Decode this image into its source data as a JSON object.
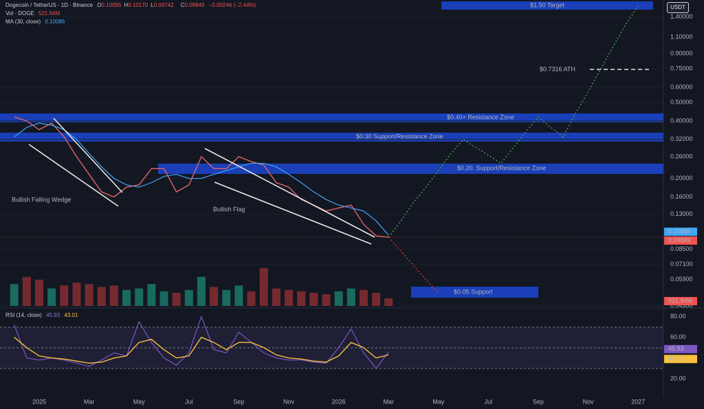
{
  "chart_data": [
    {
      "type": "line",
      "title": "Dogecoin / TetherUS · 1D · Binance",
      "unit": "USDT",
      "ohlc": [
        {
          "name": "O",
          "value": 0.10095,
          "label": "0.10095"
        },
        {
          "name": "H",
          "value": 0.1017,
          "label": "0.10170"
        },
        {
          "name": "L",
          "value": 0.09742,
          "label": "0.09742"
        }
      ],
      "close_name": "C",
      "change_label": "−0.00246 (−2.44%)",
      "log_scale": true,
      "grid": true,
      "color": "#e06666",
      "categories": [
        null,
        null,
        "2025",
        null,
        null,
        null,
        "Mar",
        null,
        null,
        null,
        "May",
        null,
        null,
        null,
        "Jul",
        null,
        null,
        null,
        "Sep",
        null,
        null,
        null,
        "Nov",
        null,
        null,
        null,
        "2026",
        null,
        null,
        null,
        "Mar",
        null,
        null,
        null,
        "May",
        null,
        null,
        null,
        "Jul",
        null,
        null,
        null,
        "Sep",
        null,
        null,
        null,
        "Nov",
        null,
        null,
        null,
        "2027",
        null,
        null
      ],
      "values": [
        0.42,
        0.4,
        0.36,
        0.39,
        0.33,
        0.26,
        0.21,
        0.17,
        0.16,
        0.18,
        0.185,
        0.225,
        0.225,
        0.17,
        0.185,
        0.26,
        0.225,
        0.225,
        0.26,
        0.245,
        0.235,
        0.19,
        0.18,
        0.155,
        0.145,
        0.135,
        0.14,
        0.145,
        0.115,
        0.1,
        0.09849,
        null,
        null,
        null,
        null,
        null,
        null,
        null,
        null,
        null,
        null,
        null,
        null,
        null,
        null,
        null,
        null,
        null,
        null,
        null,
        null,
        null,
        null
      ],
      "series": [
        {
          "name": "MA (30, close)",
          "color": "#42a5f5",
          "values": [
            0.33,
            0.37,
            0.39,
            0.38,
            0.36,
            0.32,
            0.27,
            0.23,
            0.2,
            0.185,
            0.18,
            0.19,
            0.205,
            0.21,
            0.2,
            0.2,
            0.21,
            0.22,
            0.23,
            0.24,
            0.24,
            0.23,
            0.21,
            0.19,
            0.17,
            0.155,
            0.145,
            0.14,
            0.135,
            0.12,
            0.10086,
            null,
            null,
            null,
            null,
            null,
            null,
            null,
            null,
            null,
            null,
            null,
            null,
            null,
            null,
            null,
            null,
            null,
            null,
            null,
            null,
            null,
            null
          ]
        }
      ],
      "projections": [
        {
          "color": "#4caf50",
          "values": [
            null,
            null,
            null,
            null,
            null,
            null,
            null,
            null,
            null,
            null,
            null,
            null,
            null,
            null,
            null,
            null,
            null,
            null,
            null,
            null,
            null,
            null,
            null,
            null,
            null,
            null,
            null,
            null,
            null,
            null,
            0.09849,
            0.12,
            0.15,
            0.18,
            0.22,
            0.27,
            0.32,
            0.29,
            0.265,
            0.24,
            0.29,
            0.35,
            0.42,
            0.37,
            0.33,
            0.44,
            0.57,
            0.75,
            0.98,
            1.28,
            1.6,
            null,
            null
          ]
        },
        {
          "color": "#e53935",
          "values": [
            null,
            null,
            null,
            null,
            null,
            null,
            null,
            null,
            null,
            null,
            null,
            null,
            null,
            null,
            null,
            null,
            null,
            null,
            null,
            null,
            null,
            null,
            null,
            null,
            null,
            null,
            null,
            null,
            null,
            null,
            0.09849,
            0.083,
            0.07,
            0.059,
            0.05,
            null,
            null,
            null,
            null,
            null,
            null,
            null,
            null,
            null,
            null,
            null,
            null,
            null,
            null,
            null,
            null,
            null,
            null
          ]
        }
      ],
      "ylim": [
        0.043,
        1.65
      ],
      "yticks": [
        {
          "value": 1.4,
          "label": "1.40000"
        },
        {
          "value": 1.1,
          "label": "1.10000"
        },
        {
          "value": 0.9,
          "label": "0.90000"
        },
        {
          "value": 0.75,
          "label": "0.75000"
        },
        {
          "value": 0.6,
          "label": "0.60000"
        },
        {
          "value": 0.5,
          "label": "0.50000"
        },
        {
          "value": 0.4,
          "label": "0.40000"
        },
        {
          "value": 0.32,
          "label": "0.32000"
        },
        {
          "value": 0.26,
          "label": "0.26000"
        },
        {
          "value": 0.2,
          "label": "0.20000"
        },
        {
          "value": 0.16,
          "label": "0.16000"
        },
        {
          "value": 0.13,
          "label": "0.13000"
        },
        {
          "value": 0.085,
          "label": "0.08500"
        },
        {
          "value": 0.071,
          "label": "0.07100"
        },
        {
          "value": 0.059,
          "label": "0.05900"
        },
        {
          "value": 0.043,
          "label": "0.04300"
        }
      ],
      "annotations": {
        "target": "$1.50 Target",
        "ath": "$0.7316 ATH",
        "zone_040": "$0.40+ Resistance Zone",
        "zone_030": "$0.30 Support/Resistance Zone",
        "zone_020": "$0.20. Support/Resistance Zone",
        "support_005": "$0.05 Support",
        "wedge": "Bullish Falling Wedge",
        "flag": "Bullish Flag"
      }
    },
    {
      "type": "bar",
      "title": "Vol · DOGE",
      "up_color": "#1b7f6f",
      "down_color": "#8e2f35",
      "values": [
        1500,
        2000,
        1800,
        1200,
        1400,
        1600,
        1500,
        1300,
        1400,
        1100,
        1200,
        1500,
        1000,
        900,
        1100,
        2000,
        1300,
        1100,
        1400,
        1000,
        2600,
        1200,
        1100,
        1000,
        900,
        800,
        1000,
        1200,
        1100,
        900,
        521.94
      ],
      "value_labels": [
        null,
        null,
        null,
        null,
        null,
        null,
        null,
        null,
        null,
        null,
        null,
        null,
        null,
        null,
        null,
        null,
        null,
        null,
        null,
        null,
        null,
        null,
        null,
        null,
        null,
        null,
        null,
        null,
        null,
        null,
        "521.94M"
      ]
    },
    {
      "type": "line",
      "title": "RSI (14, close)",
      "color": "#7e57c2",
      "ma_color": "#f9c23c",
      "values": [
        72,
        40,
        38,
        40,
        38,
        35,
        32,
        38,
        45,
        42,
        75,
        55,
        40,
        33,
        45,
        80,
        48,
        45,
        65,
        55,
        45,
        40,
        38,
        38,
        36,
        35,
        50,
        68,
        45,
        30,
        45.93
      ],
      "ma_values": [
        60,
        50,
        42,
        40,
        39,
        37,
        35,
        36,
        40,
        42,
        55,
        58,
        48,
        40,
        42,
        60,
        55,
        48,
        55,
        55,
        50,
        43,
        40,
        39,
        37,
        36,
        42,
        55,
        50,
        40,
        43.01
      ],
      "ylim": [
        4,
        87
      ],
      "yticks": [
        {
          "value": 80,
          "label": "80.00"
        },
        {
          "value": 60,
          "label": "60.00"
        },
        {
          "value": 20,
          "label": "20.00"
        }
      ]
    }
  ]
}
